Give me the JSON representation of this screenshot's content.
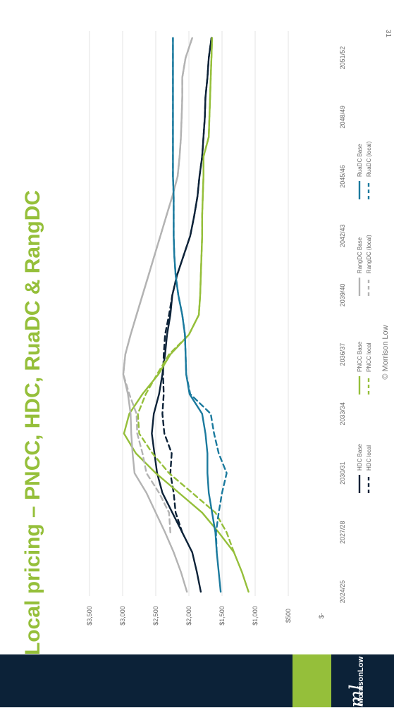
{
  "slide": {
    "title": "Local pricing – PNCC, HDC, RuaDC & RangDC",
    "page_number": "31",
    "footer": "© Morrison Low",
    "brand": "MorrisonLow",
    "colors": {
      "title_green": "#95bf3a",
      "navy": "#0c2238",
      "accent_green": "#95bf3a"
    }
  },
  "chart_data": {
    "type": "line",
    "title": "",
    "xlabel": "",
    "ylabel": "",
    "categories": [
      "2024/25",
      "2025/26",
      "2026/27",
      "2027/28",
      "2028/29",
      "2029/30",
      "2030/31",
      "2031/32",
      "2032/33",
      "2033/34",
      "2034/35",
      "2035/36",
      "2036/37",
      "2037/38",
      "2038/39",
      "2039/40",
      "2040/41",
      "2041/42",
      "2042/43",
      "2043/44",
      "2044/45",
      "2045/46",
      "2046/47",
      "2047/48",
      "2048/49",
      "2049/50",
      "2050/51",
      "2051/52",
      "2052/53"
    ],
    "tick_labels": [
      "2024/25",
      "2027/28",
      "2030/31",
      "2033/34",
      "2036/37",
      "2039/40",
      "2042/43",
      "2045/46",
      "2048/49",
      "2051/52"
    ],
    "y_ticks": [
      0,
      500,
      1000,
      1500,
      2000,
      2500,
      3000,
      3500
    ],
    "y_tick_labels": [
      "$-",
      "$500",
      "$1,000",
      "$1,500",
      "$2,000",
      "$2,500",
      "$3,000",
      "$3,500"
    ],
    "ylim": [
      0,
      3500
    ],
    "grid": true,
    "legend_position": "bottom",
    "series": [
      {
        "name": "HDC Base",
        "color": "#0c2238",
        "dash": false,
        "values": [
          1820,
          1880,
          1950,
          2100,
          2250,
          2400,
          2480,
          2520,
          2560,
          2530,
          2450,
          2400,
          2360,
          2330,
          2280,
          2250,
          2180,
          2080,
          1980,
          1920,
          1870,
          1840,
          1800,
          1780,
          1760,
          1750,
          1720,
          1700,
          1660
        ]
      },
      {
        "name": "HDC local",
        "color": "#0c2238",
        "dash": true,
        "values": [
          null,
          null,
          null,
          2100,
          2200,
          2230,
          2280,
          2260,
          2370,
          2400,
          2380,
          2390,
          2380,
          2360,
          2300,
          2250,
          2180,
          2080,
          1980,
          1920,
          1870,
          1840,
          1800,
          1780,
          1760,
          1750,
          1720,
          1700,
          1660
        ]
      },
      {
        "name": "PNCC Base",
        "color": "#95bf3a",
        "dash": false,
        "values": [
          1100,
          1200,
          1320,
          1550,
          1800,
          2150,
          2500,
          2800,
          2980,
          2900,
          2700,
          2460,
          2280,
          2000,
          1850,
          1830,
          1820,
          1810,
          1800,
          1800,
          1790,
          1780,
          1780,
          1700,
          1690,
          1680,
          1670,
          1660,
          1650
        ]
      },
      {
        "name": "PNCC local",
        "color": "#95bf3a",
        "dash": true,
        "values": [
          null,
          null,
          1320,
          1430,
          1600,
          1950,
          2300,
          2550,
          2750,
          2770,
          2650,
          2480,
          2300,
          2000,
          1850,
          1830,
          1820,
          1810,
          1800,
          1800,
          1790,
          1780,
          1780,
          1700,
          1690,
          1680,
          1670,
          1660,
          1650
        ]
      },
      {
        "name": "RangDC Base",
        "color": "#b3b3b3",
        "dash": false,
        "values": [
          2030,
          2120,
          2230,
          2360,
          2500,
          2640,
          2820,
          2850,
          2870,
          2880,
          2920,
          2990,
          2960,
          2880,
          2790,
          2700,
          2610,
          2520,
          2430,
          2340,
          2250,
          2170,
          2140,
          2120,
          2110,
          2100,
          2100,
          2050,
          1950
        ]
      },
      {
        "name": "RangDC (local)",
        "color": "#b3b3b3",
        "dash": true,
        "values": [
          null,
          null,
          null,
          2280,
          2300,
          2450,
          2640,
          2700,
          2780,
          2790,
          2900,
          2990,
          2960,
          2880,
          2790,
          2700,
          2610,
          2520,
          2430,
          2340,
          2250,
          2170,
          2140,
          2120,
          2110,
          2100,
          2100,
          2050,
          1950
        ]
      },
      {
        "name": "RuaDC Base",
        "color": "#1b7a9e",
        "dash": false,
        "values": [
          1520,
          1550,
          1580,
          1600,
          1650,
          1700,
          1720,
          1720,
          1750,
          1800,
          1990,
          2040,
          2050,
          2060,
          2100,
          2160,
          2200,
          2220,
          2230,
          2230,
          2230,
          2240,
          2240,
          2240,
          2240,
          2240,
          2240,
          2240,
          2240
        ]
      },
      {
        "name": "RuaDC (local)",
        "color": "#1b7a9e",
        "dash": true,
        "values": [
          null,
          null,
          1580,
          1590,
          1550,
          1500,
          1430,
          1550,
          1620,
          1670,
          1980,
          2040,
          2050,
          2060,
          2100,
          2160,
          2200,
          2220,
          2230,
          2230,
          2230,
          2240,
          2240,
          2240,
          2240,
          2240,
          2240,
          2240,
          2240
        ]
      }
    ]
  }
}
